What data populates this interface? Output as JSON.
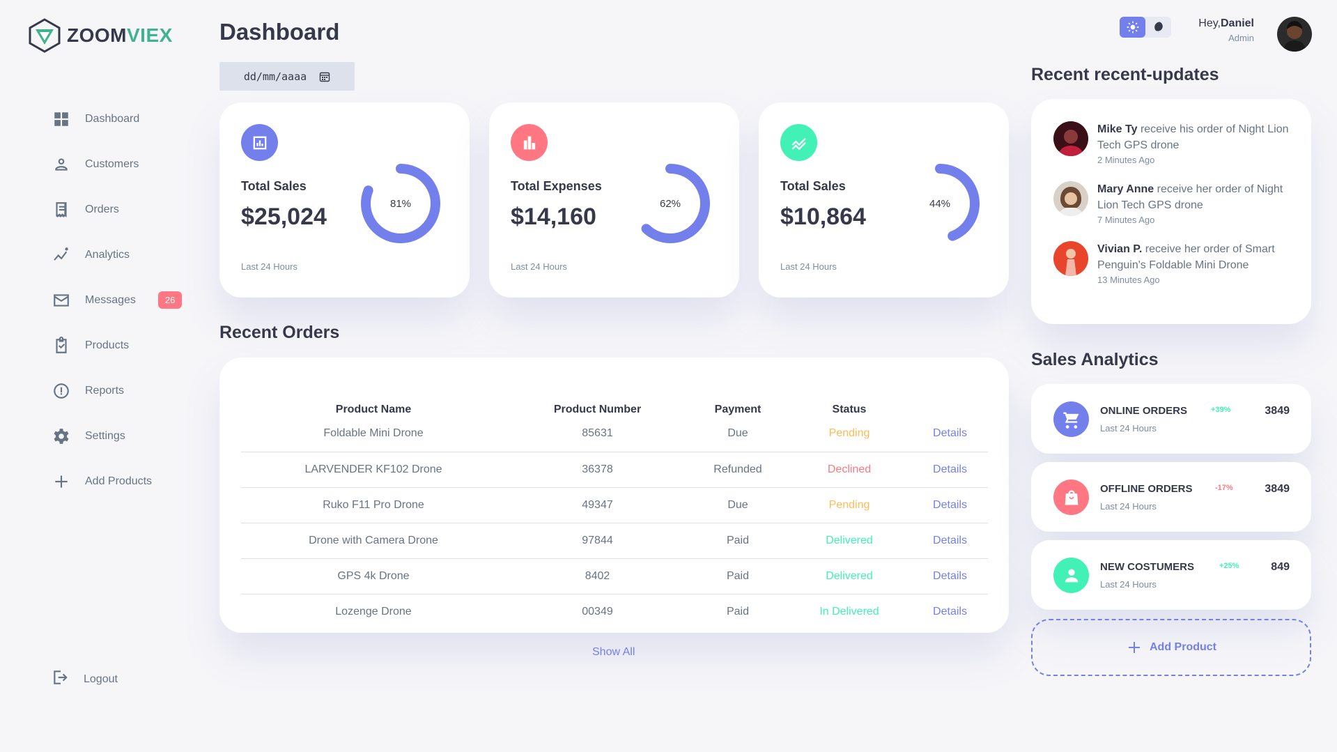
{
  "brand": {
    "part1": "ZOOM",
    "part2": "VIEX"
  },
  "sidebar": {
    "items": [
      {
        "label": "Dashboard",
        "icon": "grid-icon"
      },
      {
        "label": "Customers",
        "icon": "person-icon"
      },
      {
        "label": "Orders",
        "icon": "receipt-icon"
      },
      {
        "label": "Analytics",
        "icon": "insights-icon"
      },
      {
        "label": "Messages",
        "icon": "mail-icon",
        "badge": "26"
      },
      {
        "label": "Products",
        "icon": "inventory-icon"
      },
      {
        "label": "Reports",
        "icon": "report-icon"
      },
      {
        "label": "Settings",
        "icon": "gear-icon"
      },
      {
        "label": "Add Products",
        "icon": "plus-icon"
      }
    ],
    "logout": "Logout"
  },
  "header": {
    "title": "Dashboard",
    "date_placeholder": "dd/mm/aaaa"
  },
  "insights": [
    {
      "label": "Total Sales",
      "amount": "$25,024",
      "percent": "81%",
      "fraction": 0.81,
      "period": "Last 24 Hours",
      "color": "#7380ec"
    },
    {
      "label": "Total Expenses",
      "amount": "$14,160",
      "percent": "62%",
      "fraction": 0.62,
      "period": "Last 24 Hours",
      "color": "#ff7782"
    },
    {
      "label": "Total Sales",
      "amount": "$10,864",
      "percent": "44%",
      "fraction": 0.44,
      "period": "Last 24 Hours",
      "color": "#41f1b6"
    }
  ],
  "orders": {
    "title": "Recent Orders",
    "columns": [
      "Product Name",
      "Product Number",
      "Payment",
      "Status",
      ""
    ],
    "rows": [
      {
        "name": "Foldable Mini Drone",
        "number": "85631",
        "payment": "Due",
        "status": "Pending",
        "status_kind": "warning",
        "action": "Details"
      },
      {
        "name": "LARVENDER KF102 Drone",
        "number": "36378",
        "payment": "Refunded",
        "status": "Declined",
        "status_kind": "danger",
        "action": "Details"
      },
      {
        "name": "Ruko F11 Pro Drone",
        "number": "49347",
        "payment": "Due",
        "status": "Pending",
        "status_kind": "warning",
        "action": "Details"
      },
      {
        "name": "Drone with Camera Drone",
        "number": "97844",
        "payment": "Paid",
        "status": "Delivered",
        "status_kind": "success",
        "action": "Details"
      },
      {
        "name": "GPS 4k Drone",
        "number": "8402",
        "payment": "Paid",
        "status": "Delivered",
        "status_kind": "success",
        "action": "Details"
      },
      {
        "name": "Lozenge Drone",
        "number": "00349",
        "payment": "Paid",
        "status": "In Delivered",
        "status_kind": "success",
        "action": "Details"
      }
    ],
    "show_all": "Show All"
  },
  "profile": {
    "greeting": "Hey,",
    "name": "Daniel",
    "role": "Admin"
  },
  "updates": {
    "title": "Recent recent-updates",
    "items": [
      {
        "name": "Mike Ty",
        "text": " receive his order of Night Lion Tech GPS drone",
        "ago": "2 Minutes Ago"
      },
      {
        "name": "Mary Anne",
        "text": " receive her order of Night Lion Tech GPS drone",
        "ago": "7 Minutes Ago"
      },
      {
        "name": "Vivian P.",
        "text": " receive her order of Smart Penguin's Foldable Mini Drone",
        "ago": "13 Minutes Ago"
      }
    ]
  },
  "analytics": {
    "title": "Sales Analytics",
    "items": [
      {
        "title": "ONLINE ORDERS",
        "sub": "Last 24 Hours",
        "change": "+39%",
        "value": "3849",
        "color": "#7380ec",
        "change_color": "#41f1b6",
        "icon": "cart-icon"
      },
      {
        "title": "OFFLINE ORDERS",
        "sub": "Last 24 Hours",
        "change": "-17%",
        "value": "3849",
        "color": "#ff7782",
        "change_color": "#ff7782",
        "icon": "shopping-bag-icon"
      },
      {
        "title": "NEW COSTUMERS",
        "sub": "Last 24 Hours",
        "change": "+25%",
        "value": "849",
        "color": "#41f1b6",
        "change_color": "#41f1b6",
        "icon": "person-icon"
      }
    ],
    "add_label": "Add Product"
  }
}
